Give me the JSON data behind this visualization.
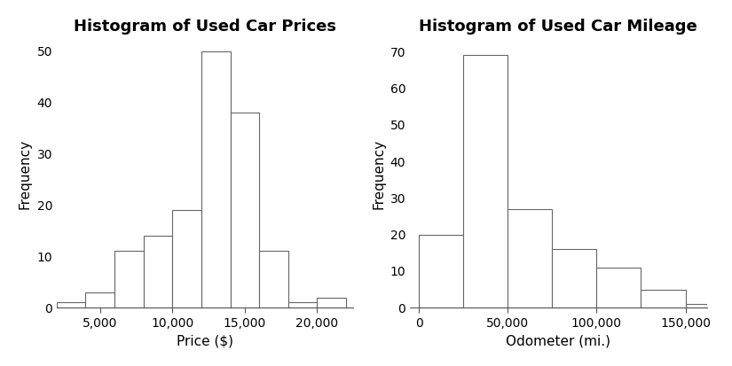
{
  "left_title": "Histogram of Used Car Prices",
  "left_xlabel": "Price ($)",
  "left_ylabel": "Frequency",
  "left_xlim": [
    2000,
    22500
  ],
  "left_ylim": [
    0,
    52
  ],
  "left_yticks": [
    0,
    10,
    20,
    30,
    40,
    50
  ],
  "left_xticks": [
    5000,
    10000,
    15000,
    20000
  ],
  "left_xtick_labels": [
    "5,000",
    "10,000",
    "15,000",
    "20,000"
  ],
  "left_bin_edges": [
    2000,
    4000,
    6000,
    8000,
    10000,
    12000,
    14000,
    16000,
    18000,
    20000,
    22000
  ],
  "left_counts": [
    1,
    3,
    11,
    14,
    19,
    50,
    38,
    11,
    1,
    2
  ],
  "right_title": "Histogram of Used Car Mileage",
  "right_xlabel": "Odometer (mi.)",
  "right_ylabel": "Frequency",
  "right_xlim": [
    -5000,
    162000
  ],
  "right_ylim": [
    0,
    73
  ],
  "right_yticks": [
    0,
    10,
    20,
    30,
    40,
    50,
    60,
    70
  ],
  "right_xticks": [
    0,
    50000,
    100000,
    150000
  ],
  "right_xtick_labels": [
    "0",
    "50,000",
    "100,000",
    "150,000"
  ],
  "right_bin_edges": [
    0,
    25000,
    50000,
    75000,
    100000,
    125000,
    150000,
    162000
  ],
  "right_counts": [
    20,
    69,
    27,
    16,
    11,
    5,
    1
  ],
  "bar_facecolor": "#ffffff",
  "bar_edgecolor": "#666666",
  "background_color": "#ffffff",
  "title_fontsize": 13,
  "label_fontsize": 11,
  "tick_fontsize": 10
}
